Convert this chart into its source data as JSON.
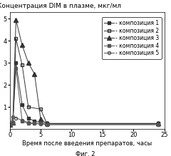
{
  "title": "Концентрация DIM в плазме, мкг/мл",
  "xlabel": "Время после введения препаратов, часы",
  "figcaption": "Фиг. 2",
  "xlim": [
    0,
    25
  ],
  "ylim": [
    0,
    5.3
  ],
  "yticks": [
    1,
    2,
    3,
    4,
    5
  ],
  "xticks": [
    0,
    5,
    10,
    15,
    20,
    25
  ],
  "series": [
    {
      "label": "- композиция 1",
      "x": [
        0,
        0.5,
        1,
        2,
        3,
        4,
        5,
        6,
        24
      ],
      "y": [
        0.2,
        0.3,
        3.0,
        1.1,
        0.5,
        0.35,
        0.3,
        0.25,
        0.25
      ],
      "marker": "s",
      "fillstyle": "full",
      "color": "#333333",
      "linestyle": "-",
      "markersize": 3
    },
    {
      "label": "- композиция 2",
      "x": [
        0,
        0.5,
        1,
        2,
        3,
        5,
        6,
        24
      ],
      "y": [
        0.2,
        0.3,
        4.1,
        2.9,
        1.0,
        0.9,
        0.25,
        0.25
      ],
      "marker": "s",
      "fillstyle": "none",
      "color": "#333333",
      "linestyle": "-",
      "markersize": 3
    },
    {
      "label": "- композиция 3",
      "x": [
        0,
        0.5,
        1,
        2,
        3,
        4,
        5,
        6,
        24
      ],
      "y": [
        0.2,
        0.3,
        4.95,
        3.8,
        3.0,
        2.5,
        0.45,
        0.25,
        0.25
      ],
      "marker": "^",
      "fillstyle": "full",
      "color": "#333333",
      "linestyle": "-",
      "markersize": 4
    },
    {
      "label": "- композиция 4",
      "x": [
        0,
        0.5,
        1,
        2,
        3,
        4,
        5,
        6,
        24
      ],
      "y": [
        0.2,
        0.3,
        2.75,
        0.35,
        0.25,
        0.25,
        0.25,
        0.2,
        0.2
      ],
      "marker": "s",
      "fillstyle": "full",
      "color": "#555555",
      "linestyle": "-",
      "markersize": 3
    },
    {
      "label": "- композиция 5",
      "x": [
        0,
        0.5,
        1,
        2,
        3,
        4,
        5,
        6,
        24
      ],
      "y": [
        0.2,
        0.55,
        0.5,
        0.4,
        0.3,
        0.25,
        0.22,
        0.2,
        0.2
      ],
      "marker": "o",
      "fillstyle": "none",
      "color": "#555555",
      "linestyle": "-",
      "markersize": 3
    }
  ],
  "title_fontsize": 6.5,
  "label_fontsize": 6,
  "tick_fontsize": 6,
  "legend_fontsize": 5.5
}
